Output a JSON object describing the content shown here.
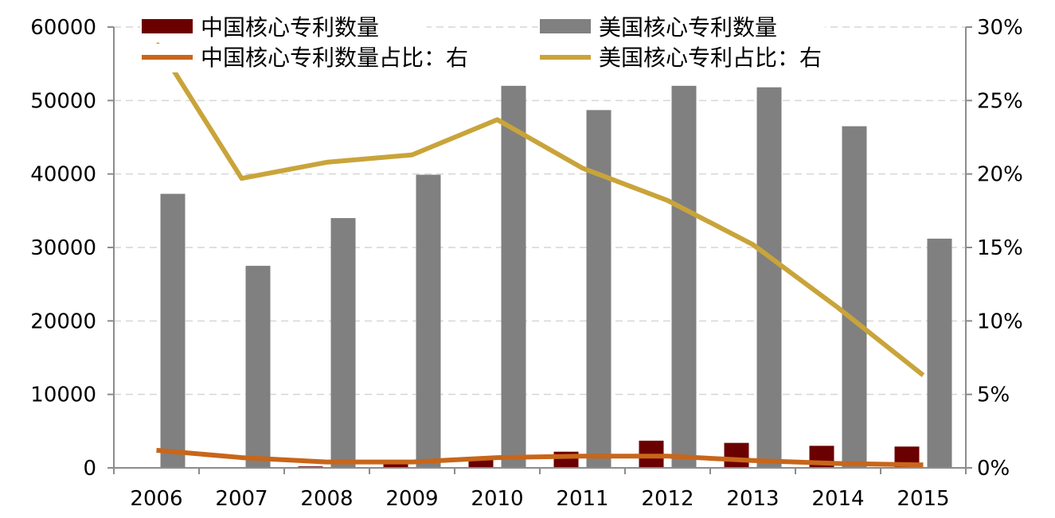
{
  "chart_data": {
    "type": "bar",
    "categories": [
      "2006",
      "2007",
      "2008",
      "2009",
      "2010",
      "2011",
      "2012",
      "2013",
      "2014",
      "2015"
    ],
    "series": [
      {
        "name": "中国核心专利数量",
        "kind": "bar",
        "axis": "left",
        "color": "#6b0000",
        "values": [
          100,
          100,
          200,
          500,
          1300,
          2200,
          3700,
          3400,
          3000,
          2900
        ]
      },
      {
        "name": "美国核心专利数量",
        "kind": "bar",
        "axis": "left",
        "color": "#808080",
        "values": [
          37300,
          27500,
          34000,
          39900,
          52000,
          48700,
          52000,
          51800,
          46500,
          31200
        ]
      },
      {
        "name": "中国核心专利数量占比：右",
        "kind": "line",
        "axis": "right",
        "color": "#c8661a",
        "values": [
          1.2,
          0.7,
          0.4,
          0.4,
          0.7,
          0.8,
          0.8,
          0.5,
          0.3,
          0.2
        ]
      },
      {
        "name": "美国核心专利占比：右",
        "kind": "line",
        "axis": "right",
        "color": "#c9a43a",
        "values": [
          28.9,
          19.7,
          20.8,
          21.3,
          23.7,
          20.4,
          18.2,
          15.2,
          10.9,
          6.3
        ]
      }
    ],
    "y_left": {
      "min": 0,
      "max": 60000,
      "ticks": [
        "0",
        "10000",
        "20000",
        "30000",
        "40000",
        "50000",
        "60000"
      ]
    },
    "y_right": {
      "min": 0,
      "max": 30,
      "unit": "%",
      "ticks": [
        "0%",
        "5%",
        "10%",
        "15%",
        "20%",
        "25%",
        "30%"
      ]
    },
    "grid": true,
    "legend": "top",
    "xlabel": "",
    "ylabel": ""
  }
}
